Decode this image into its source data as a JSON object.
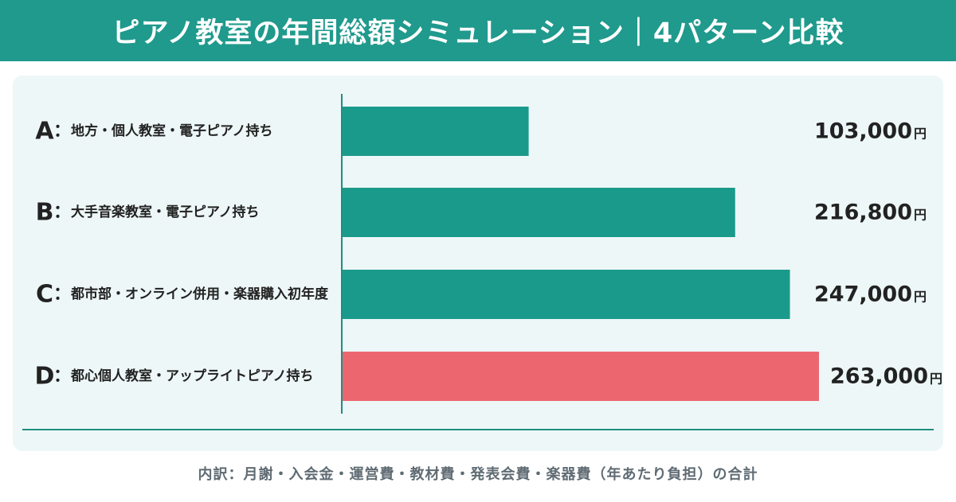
{
  "title": "ピアノ教室の年間総額シミュレーション｜4パターン比較",
  "footnote": "内訳：月謝・入会金・運営費・教材費・発表会費・楽器費（年あたり負担）の合計",
  "colors": {
    "header": "#1f9a8d",
    "bar_default": "#1a9a8b",
    "bar_highlight": "#ec6670",
    "panel": "#eef7f7",
    "axis": "#1f8e83"
  },
  "chart_data": {
    "type": "bar",
    "orientation": "horizontal",
    "categories": [
      "地方・個人教室・電子ピアノ持ち",
      "大手音楽教室・電子ピアノ持ち",
      "都市部・オンライン併用・楽器購入初年度",
      "都心個人教室・アップライトピアノ持ち"
    ],
    "category_keys": [
      "A",
      "B",
      "C",
      "D"
    ],
    "values": [
      103000,
      216800,
      247000,
      263000
    ],
    "value_labels": [
      "103,000",
      "216,800",
      "247,000",
      "263,000"
    ],
    "unit": "円",
    "highlight_index": 3,
    "xlim": [
      0,
      263000
    ],
    "grid": false,
    "legend": "none"
  }
}
